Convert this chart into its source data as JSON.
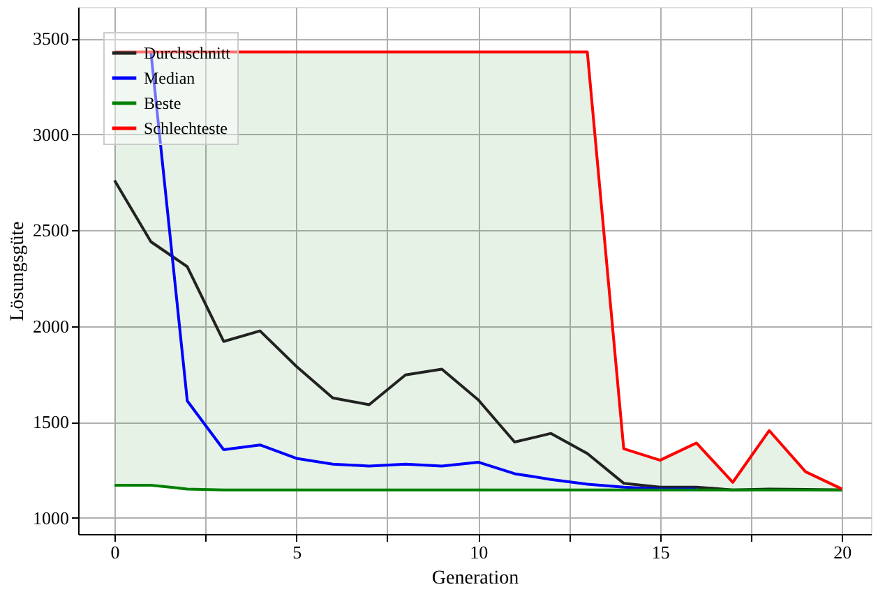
{
  "chart_data": {
    "type": "line",
    "xlabel": "Generation",
    "ylabel": "Lösungsgüte",
    "x": [
      0,
      1,
      2,
      3,
      4,
      5,
      6,
      7,
      8,
      9,
      10,
      11,
      12,
      13,
      14,
      15,
      16,
      17,
      18,
      19,
      20
    ],
    "xlim": [
      -1,
      20.8
    ],
    "ylim": [
      915,
      3665
    ],
    "xticks": [
      0,
      {
        "value": 2.5,
        "label": null
      },
      5,
      {
        "value": 7.5,
        "label": null
      },
      10,
      {
        "value": 12.5,
        "label": null
      },
      15,
      {
        "value": 17.5,
        "label": null
      },
      20
    ],
    "yticks": [
      1000,
      1500,
      2000,
      2500,
      3000,
      3500
    ],
    "grid": true,
    "legend": "top left",
    "line_style": "solid",
    "marker": "none",
    "series": [
      {
        "name": "Durchschnitt",
        "color": "#222222",
        "values": [
          2760,
          2440,
          2310,
          1920,
          1975,
          1790,
          1625,
          1590,
          1745,
          1775,
          1615,
          1395,
          1440,
          1335,
          1180,
          1160,
          1160,
          1145,
          1150,
          1148,
          1145
        ]
      },
      {
        "name": "Median",
        "color": "#0000ff",
        "values": [
          null,
          3430,
          1610,
          1355,
          1380,
          1310,
          1280,
          1270,
          1280,
          1270,
          1290,
          1230,
          1200,
          1175,
          1160,
          1150,
          1150,
          null,
          null,
          null,
          null
        ]
      },
      {
        "name": "Beste",
        "color": "#008000",
        "values": [
          1170,
          1170,
          1150,
          1145,
          1145,
          1145,
          1145,
          1145,
          1145,
          1145,
          1145,
          1145,
          1145,
          1145,
          1145,
          1145,
          1145,
          1145,
          1145,
          1145,
          1145
        ],
        "lower": [
          1170,
          1170,
          1150,
          1145,
          1145,
          1145,
          1145,
          1145,
          1145,
          1145,
          1145,
          1145,
          1145,
          1145,
          1145,
          1145,
          1145,
          1145,
          1145,
          1145,
          1145
        ],
        "upper": [
          3430,
          3430,
          3430,
          3430,
          3430,
          3430,
          3430,
          3430,
          3430,
          3430,
          3430,
          3430,
          3430,
          3430,
          1360,
          1300,
          1390,
          1185,
          1455,
          1240,
          1150
        ]
      },
      {
        "name": "Schlechteste",
        "color": "#ff0000",
        "values": [
          3430,
          3430,
          3430,
          3430,
          3430,
          3430,
          3430,
          3430,
          3430,
          3430,
          3430,
          3430,
          3430,
          3430,
          1360,
          1300,
          1390,
          1185,
          1455,
          1240,
          1150
        ]
      }
    ]
  }
}
